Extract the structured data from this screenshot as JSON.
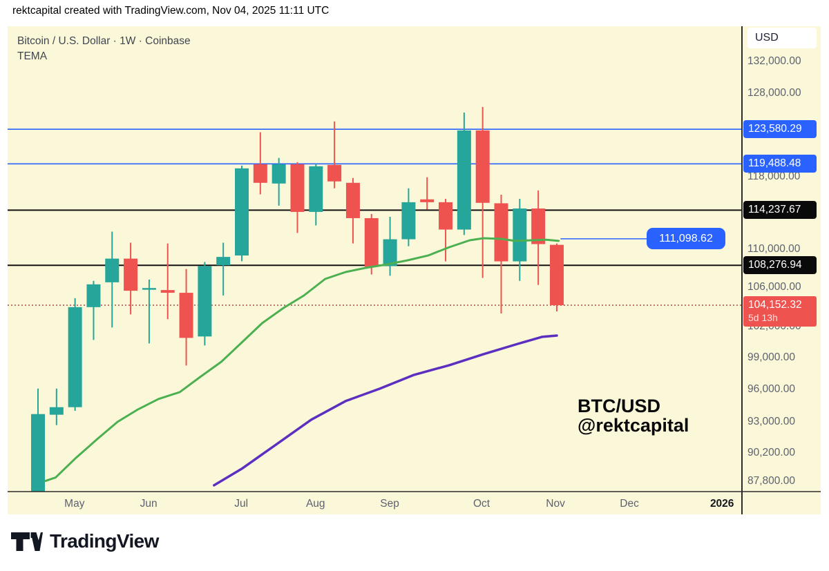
{
  "header": {
    "attribution": "rektcapital created with TradingView.com, Nov 04, 2025 11:11 UTC"
  },
  "chart": {
    "symbol_line": "Bitcoin / U.S. Dollar · 1W · Coinbase",
    "indicator_label": "TEMA",
    "watermark_line1": "BTC/USD",
    "watermark_line2": "@rektcapital",
    "currency_label": "USD"
  },
  "footer": {
    "brand": "TradingView"
  },
  "colors": {
    "chart_bg": "#fbf8da",
    "up_candle": "#26a69a",
    "down_candle": "#ef5350",
    "accent_blue": "#2962ff",
    "level_black": "#111111",
    "current_price_dotted": "#b5564e",
    "tema_green": "#4caf50",
    "ma_purple": "#5d2fc0",
    "axis_text": "#5d616e"
  },
  "chart_data": {
    "type": "candlestick",
    "title": "Bitcoin / U.S. Dollar · 1W · Coinbase",
    "timeframe": "1W",
    "grid": false,
    "y_axis": {
      "scale": "log",
      "price_top": 136590,
      "price_bottom": 86900,
      "ticks": [
        {
          "label": "132,000.00",
          "price": 132000
        },
        {
          "label": "128,000.00",
          "price": 128000
        },
        {
          "label": "118,000.00",
          "price": 118000
        },
        {
          "label": "110,000.00",
          "price": 110000
        },
        {
          "label": "106,000.00",
          "price": 106000
        },
        {
          "label": "102,000.00",
          "price": 102000
        },
        {
          "label": "99,000.00",
          "price": 99000
        },
        {
          "label": "96,000.00",
          "price": 96000
        },
        {
          "label": "93,000.00",
          "price": 93000
        },
        {
          "label": "90,200.00",
          "price": 90200
        },
        {
          "label": "87,800.00",
          "price": 87800
        }
      ]
    },
    "x_axis": {
      "ticks": [
        {
          "label": "May",
          "week": 1.97,
          "bold": false
        },
        {
          "label": "Jun",
          "week": 5.97,
          "bold": false
        },
        {
          "label": "Jul",
          "week": 10.97,
          "bold": false
        },
        {
          "label": "Aug",
          "week": 14.98,
          "bold": false
        },
        {
          "label": "Sep",
          "week": 18.98,
          "bold": false
        },
        {
          "label": "Oct",
          "week": 23.94,
          "bold": false
        },
        {
          "label": "Nov",
          "week": 27.93,
          "bold": false
        },
        {
          "label": "Dec",
          "week": 31.92,
          "bold": false
        },
        {
          "label": "2026",
          "week": 36.92,
          "bold": true
        }
      ]
    },
    "ohlc_order": [
      "open",
      "high",
      "low",
      "close"
    ],
    "candles": [
      [
        86800,
        96050,
        86600,
        93700
      ],
      [
        93640,
        96050,
        92700,
        94330
      ],
      [
        94330,
        104870,
        94000,
        103960
      ],
      [
        103960,
        106650,
        100700,
        106290
      ],
      [
        106500,
        111870,
        101930,
        108980
      ],
      [
        108980,
        110680,
        103230,
        105630
      ],
      [
        105770,
        106790,
        100360,
        105910
      ],
      [
        105700,
        110600,
        102750,
        105420
      ],
      [
        105420,
        107880,
        98230,
        100900
      ],
      [
        101040,
        108630,
        100160,
        108190
      ],
      [
        108280,
        110680,
        105140,
        109160
      ],
      [
        109310,
        119290,
        108700,
        118970
      ],
      [
        119450,
        123220,
        116000,
        117310
      ],
      [
        117230,
        120180,
        114730,
        119450
      ],
      [
        119450,
        119690,
        111730,
        114040
      ],
      [
        114040,
        119500,
        112550,
        119210
      ],
      [
        119370,
        124520,
        116680,
        117470
      ],
      [
        117310,
        117870,
        110600,
        113350
      ],
      [
        113350,
        113810,
        107320,
        108120
      ],
      [
        108190,
        113500,
        107180,
        111050
      ],
      [
        111050,
        116680,
        110300,
        115120
      ],
      [
        115440,
        117950,
        114300,
        115120
      ],
      [
        115120,
        115500,
        108690,
        112100
      ],
      [
        112100,
        125600,
        111510,
        123440
      ],
      [
        123440,
        126290,
        106960,
        115050
      ],
      [
        115000,
        115960,
        103320,
        108690
      ],
      [
        108690,
        115500,
        106650,
        114420
      ],
      [
        114420,
        116450,
        106220,
        110530
      ],
      [
        110450,
        110600,
        103530,
        104152.32
      ]
    ],
    "overlays": {
      "tema_green": [
        [
          0.4,
          87800
        ],
        [
          0.95,
          88100
        ],
        [
          2.05,
          89800
        ],
        [
          3.2,
          91450
        ],
        [
          4.3,
          93000
        ],
        [
          5.4,
          94130
        ],
        [
          6.5,
          95080
        ],
        [
          7.65,
          95720
        ],
        [
          8.75,
          97140
        ],
        [
          9.9,
          98590
        ],
        [
          11.0,
          100450
        ],
        [
          12.1,
          102360
        ],
        [
          13.25,
          103880
        ],
        [
          14.35,
          105140
        ],
        [
          15.5,
          106850
        ],
        [
          16.6,
          107570
        ],
        [
          17.7,
          108010
        ],
        [
          18.85,
          108370
        ],
        [
          19.95,
          108800
        ],
        [
          21.05,
          109310
        ],
        [
          22.2,
          110200
        ],
        [
          23.3,
          110940
        ],
        [
          24.05,
          111160
        ],
        [
          25.0,
          111090
        ],
        [
          25.75,
          110870
        ],
        [
          26.65,
          110940
        ],
        [
          27.4,
          111010
        ],
        [
          28.1,
          110870
        ]
      ],
      "ma_purple": [
        [
          9.5,
          87430
        ],
        [
          11.0,
          88850
        ],
        [
          12.85,
          90960
        ],
        [
          14.75,
          93190
        ],
        [
          16.6,
          94890
        ],
        [
          18.45,
          96040
        ],
        [
          20.3,
          97340
        ],
        [
          22.2,
          98260
        ],
        [
          24.05,
          99320
        ],
        [
          25.9,
          100320
        ],
        [
          27.2,
          101000
        ],
        [
          28.0,
          101130
        ]
      ]
    },
    "price_lines": [
      {
        "price": 123580.29,
        "label": "123,580.29",
        "color": "blue",
        "style": "solid"
      },
      {
        "price": 119488.48,
        "label": "119,488.48",
        "color": "blue",
        "style": "solid"
      },
      {
        "price": 114237.67,
        "label": "114,237.67",
        "color": "black",
        "style": "solid"
      },
      {
        "price": 108276.94,
        "label": "108,276.94",
        "color": "black",
        "style": "solid"
      },
      {
        "price": 104152.32,
        "label": "104,152.32",
        "color": "red",
        "style": "dotted",
        "countdown": "5d 13h"
      }
    ],
    "price_ray": {
      "price": 111098.62,
      "label": "111,098.62",
      "color": "blue",
      "start_week": 28.2
    }
  }
}
